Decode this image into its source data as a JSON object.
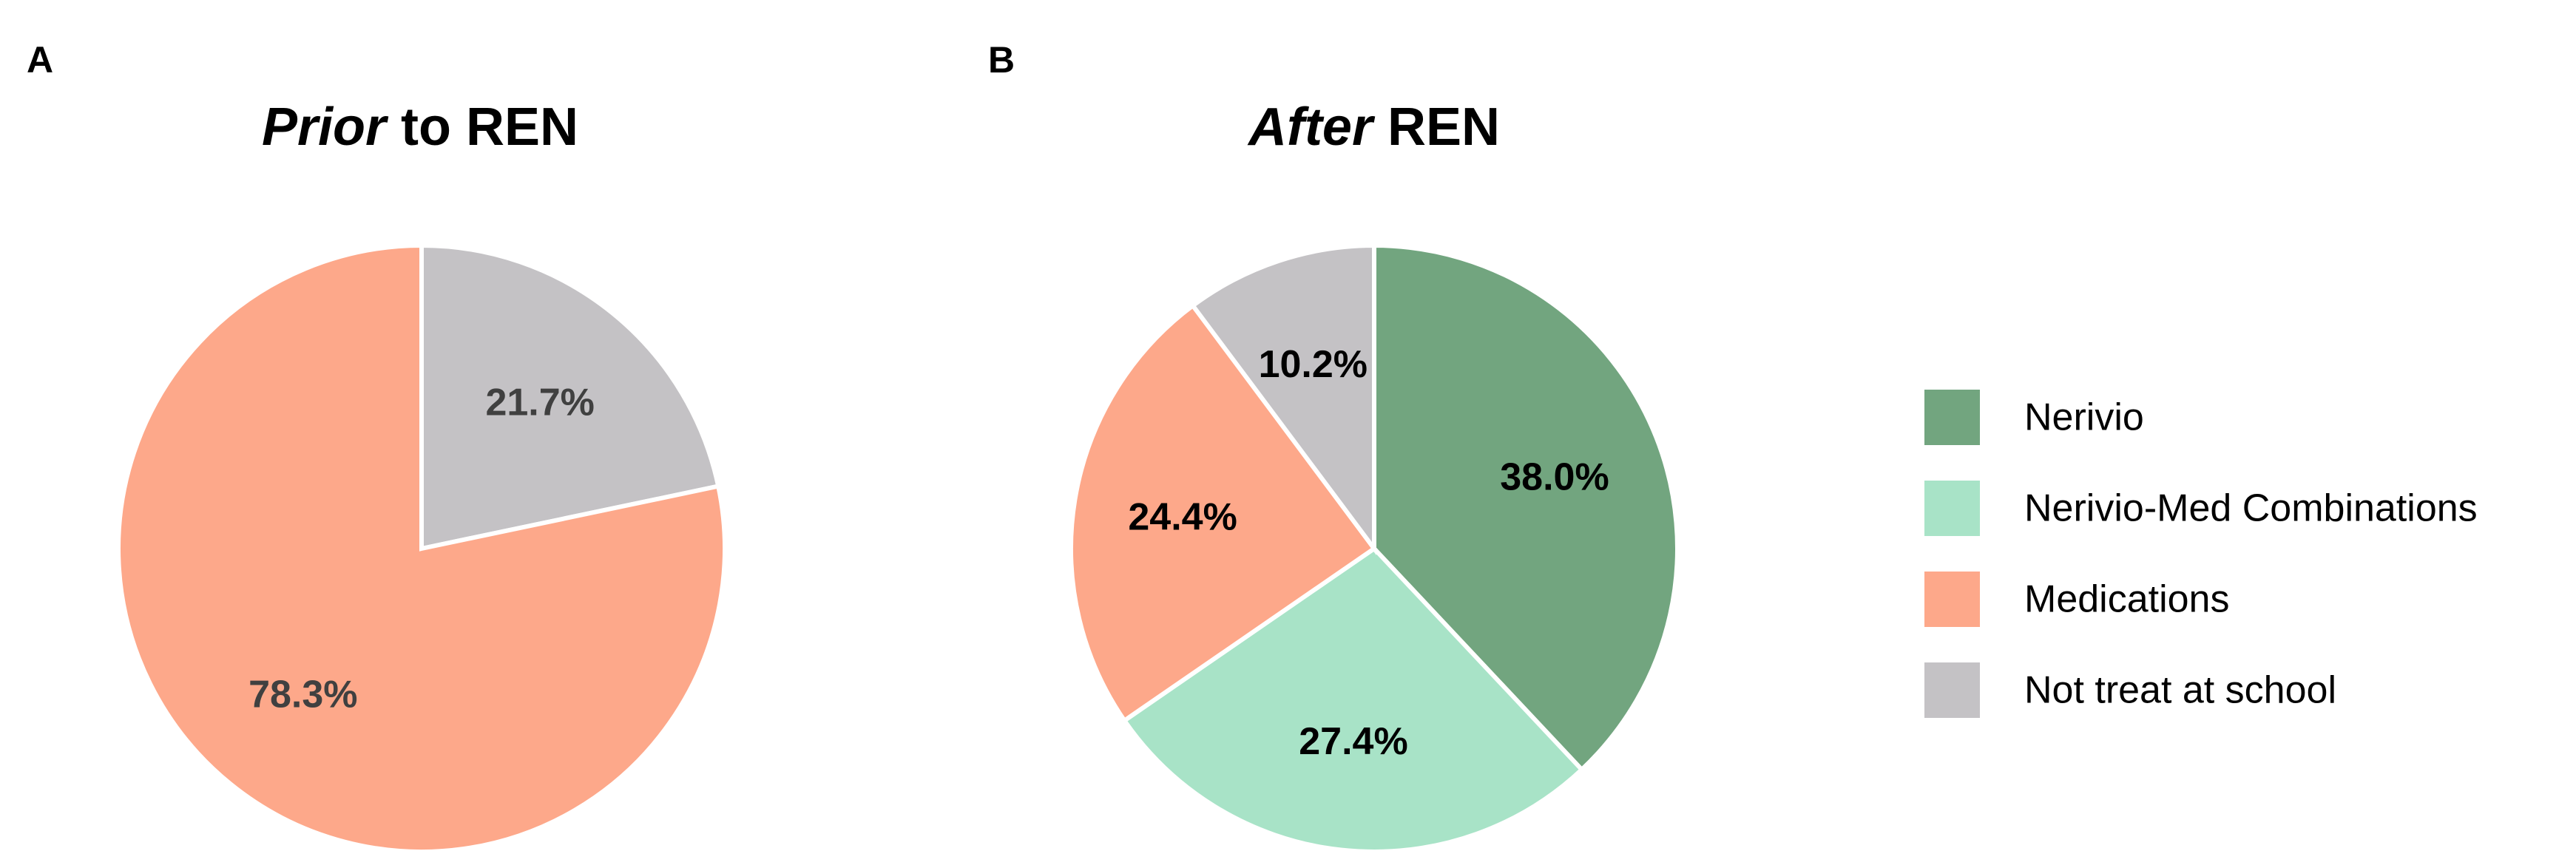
{
  "chart_data": [
    {
      "type": "pie",
      "panel": "A",
      "title_em": "Prior",
      "title_rest": " to REN",
      "slices": [
        {
          "category": "Not treat at school",
          "value": 21.7,
          "label": "21.7%"
        },
        {
          "category": "Medications",
          "value": 78.3,
          "label": "78.3%"
        }
      ]
    },
    {
      "type": "pie",
      "panel": "B",
      "title_em": "After",
      "title_rest": " REN",
      "slices": [
        {
          "category": "Nerivio",
          "value": 38.0,
          "label": "38.0%"
        },
        {
          "category": "Nerivio-Med Combinations",
          "value": 27.4,
          "label": "27.4%"
        },
        {
          "category": "Medications",
          "value": 24.4,
          "label": "24.4%"
        },
        {
          "category": "Not treat at school",
          "value": 10.2,
          "label": "10.2%"
        }
      ]
    }
  ],
  "legend": [
    {
      "category": "Nerivio",
      "label": "Nerivio",
      "color": "#72a57f"
    },
    {
      "category": "Nerivio-Med Combinations",
      "label": "Nerivio-Med Combinations",
      "color": "#a8e3c7"
    },
    {
      "category": "Medications",
      "label": "Medications",
      "color": "#fda88a"
    },
    {
      "category": "Not treat at school",
      "label": "Not treat at school",
      "color": "#c4c2c5"
    }
  ],
  "label_colors": {
    "Not treat at school": "#404040",
    "Medications": "#404040",
    "Nerivio": "#000000",
    "Nerivio-Med Combinations": "#000000"
  },
  "label_colors_panel_b": {
    "Not treat at school": "#000000",
    "Medications": "#000000",
    "Nerivio": "#000000",
    "Nerivio-Med Combinations": "#000000"
  },
  "start_angle": "12 o'clock",
  "direction": "clockwise",
  "legend_position": "right"
}
